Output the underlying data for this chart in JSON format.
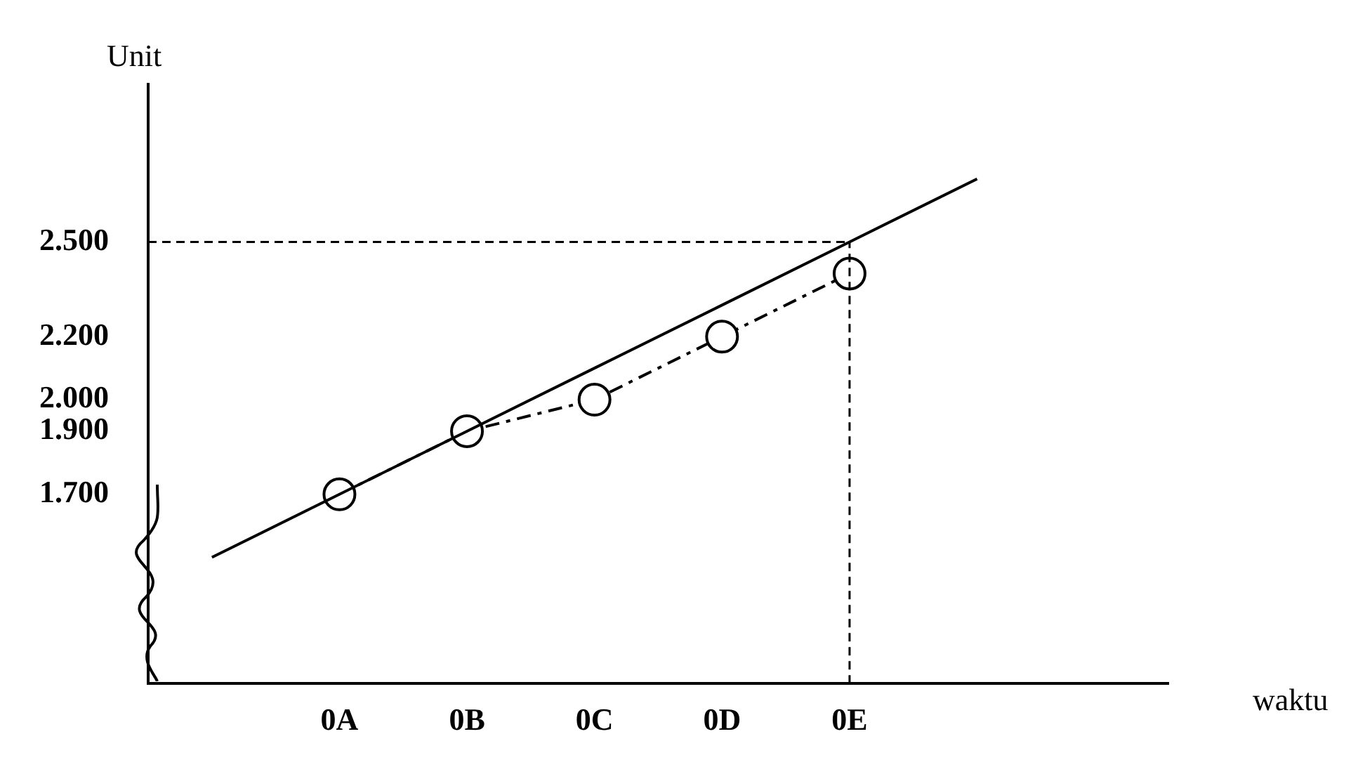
{
  "chart_data": {
    "type": "line",
    "xlabel": "waktu",
    "ylabel": "Unit",
    "categories": [
      null,
      "0A",
      "0B",
      "0C",
      "0D",
      "0E",
      null,
      null
    ],
    "series": [
      {
        "color": "#000000",
        "values": [
          1500,
          1700,
          1900,
          2100,
          2300,
          2500,
          2700,
          null
        ],
        "marker": "none",
        "line_style": "solid"
      },
      {
        "color": "#000000",
        "values": [
          null,
          1700,
          1900,
          2000,
          2200,
          2400,
          null,
          null
        ],
        "marker": "circle",
        "line_style": "dashed"
      }
    ],
    "ylim": [
      1100,
      3000
    ],
    "yticks": [
      {
        "value": 1700,
        "label": "1.700"
      },
      {
        "value": 1900,
        "label": "1.900"
      },
      {
        "value": 2000,
        "label": "2.000"
      },
      {
        "value": 2200,
        "label": "2.200"
      },
      {
        "value": 2500,
        "label": "2.500"
      }
    ],
    "ref_lines": [
      {
        "axis": "y",
        "value": 2500,
        "line_style": "dashed"
      },
      {
        "axis": "x",
        "value": "0E",
        "line_style": "dashed"
      }
    ],
    "grid": false,
    "legend": false
  }
}
